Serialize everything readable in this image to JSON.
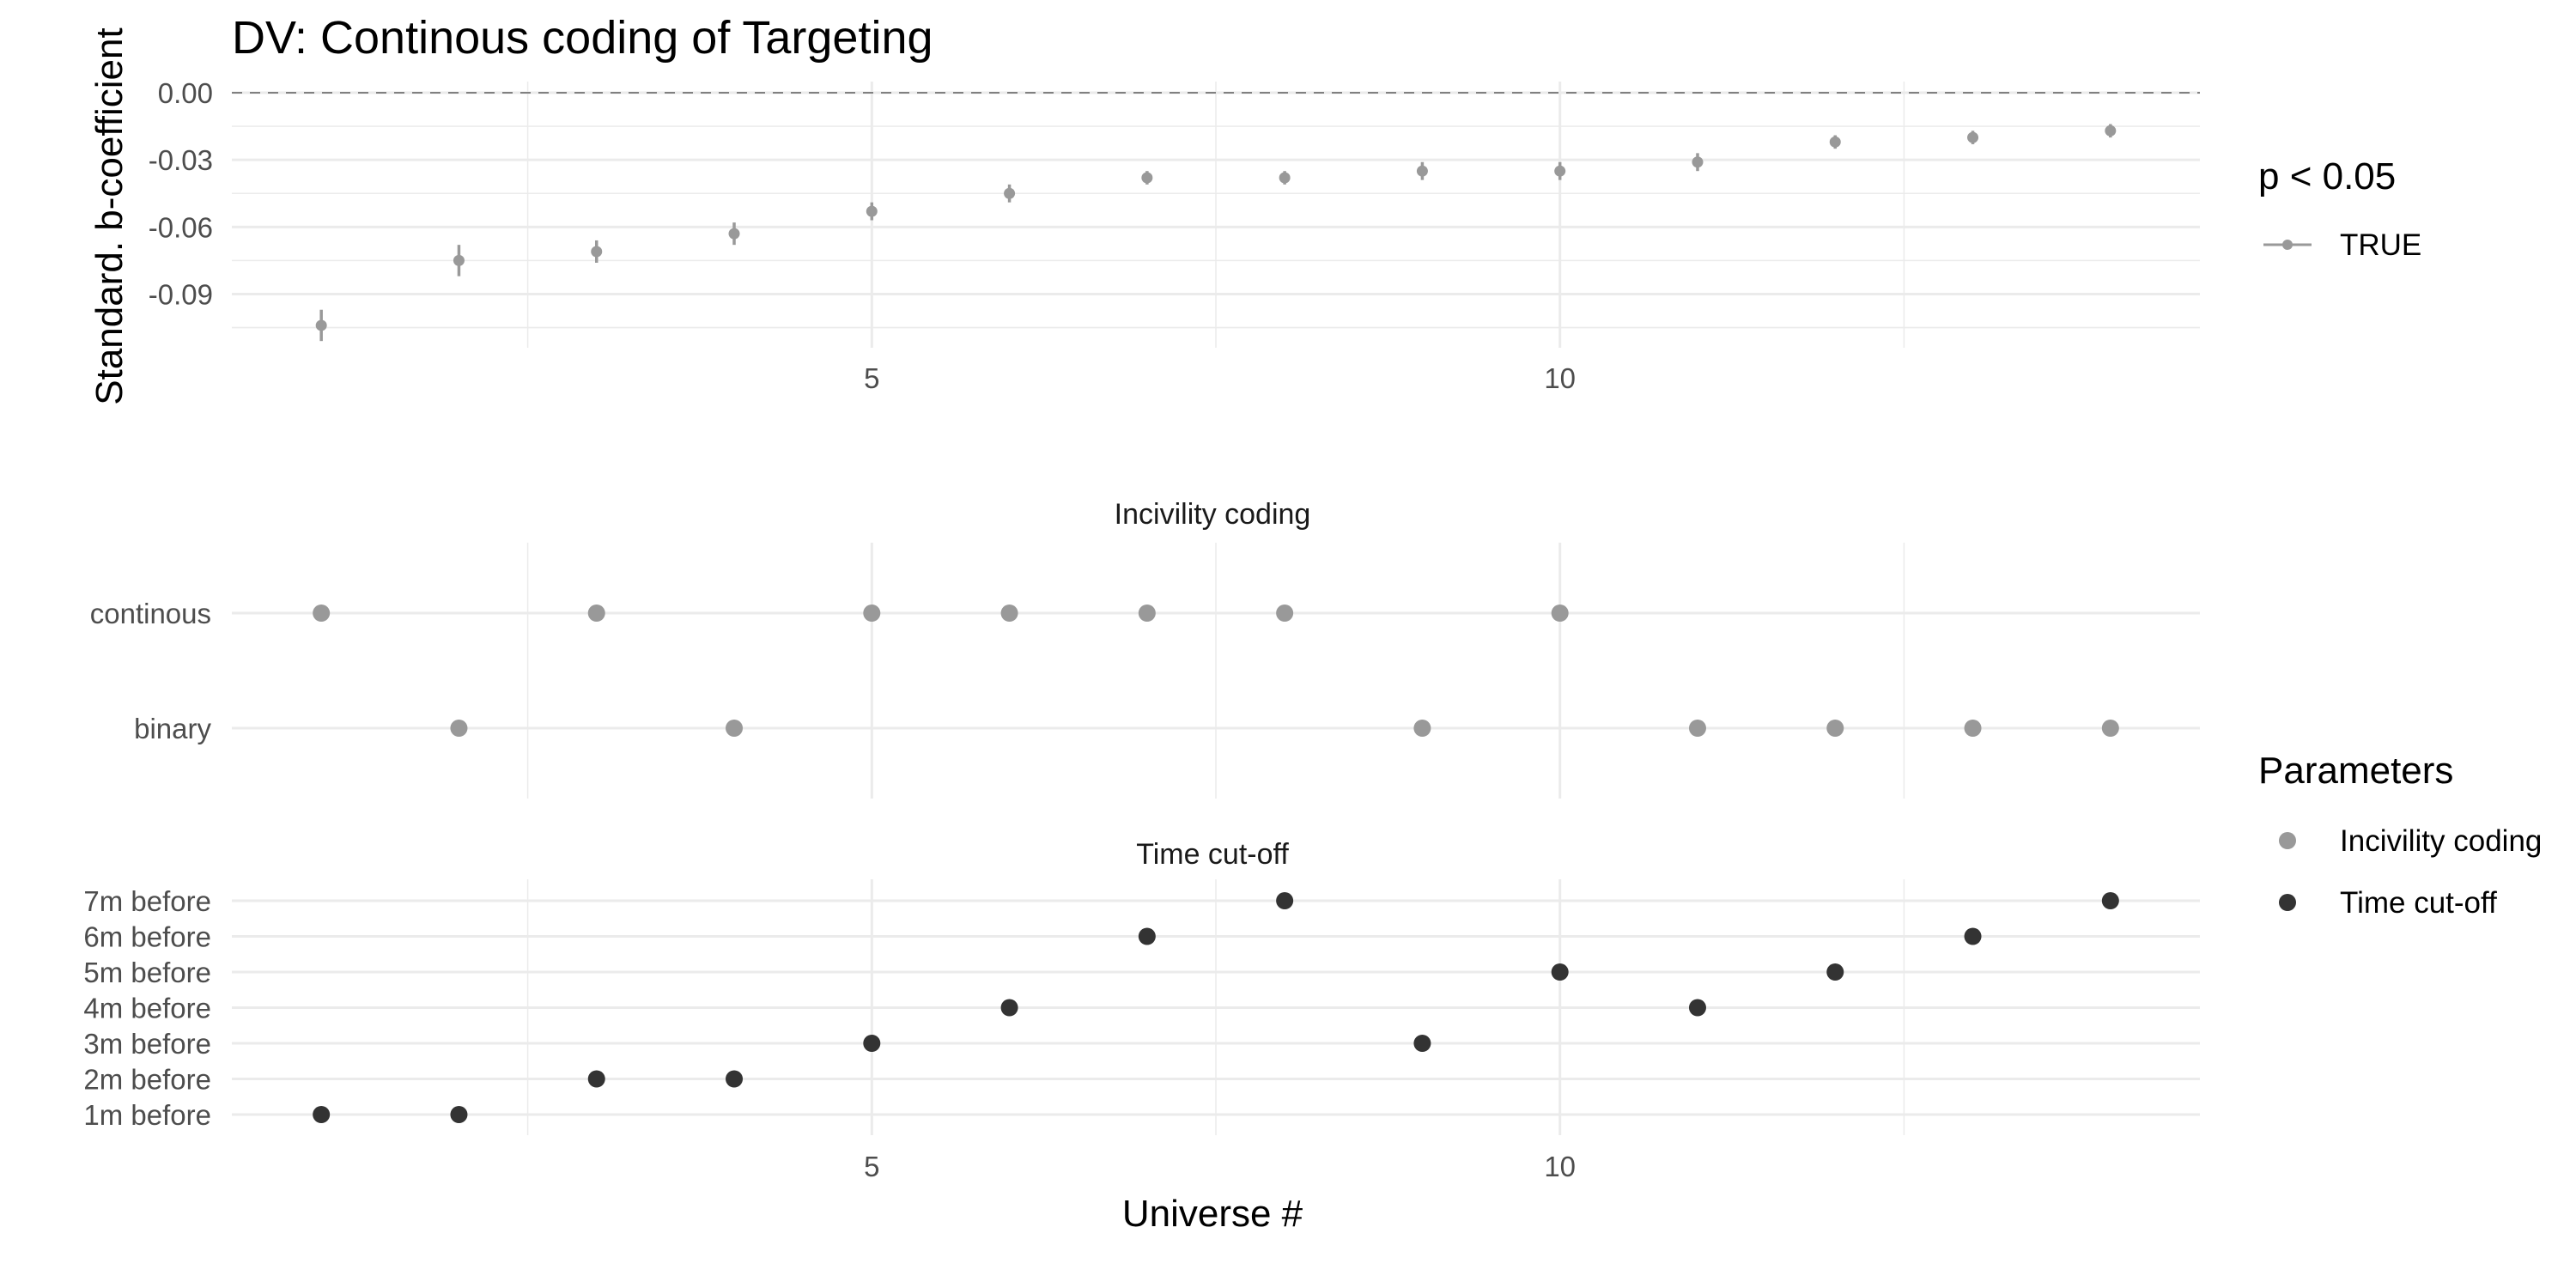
{
  "chart_data": [
    {
      "type": "scatter",
      "panel": "coefficient",
      "title": "DV: Continous coding of Targeting",
      "ylabel": "Standard. b-coefficient",
      "xlabel": "",
      "x": [
        1,
        2,
        3,
        4,
        5,
        6,
        7,
        8,
        9,
        10,
        11,
        12,
        13,
        14
      ],
      "y": [
        -0.104,
        -0.075,
        -0.071,
        -0.063,
        -0.053,
        -0.045,
        -0.038,
        -0.038,
        -0.035,
        -0.035,
        -0.031,
        -0.022,
        -0.02,
        -0.017
      ],
      "ci_low": [
        -0.111,
        -0.082,
        -0.076,
        -0.068,
        -0.057,
        -0.049,
        -0.041,
        -0.041,
        -0.039,
        -0.039,
        -0.035,
        -0.025,
        -0.023,
        -0.02
      ],
      "ci_high": [
        -0.097,
        -0.068,
        -0.066,
        -0.058,
        -0.049,
        -0.041,
        -0.035,
        -0.035,
        -0.031,
        -0.031,
        -0.027,
        -0.019,
        -0.017,
        -0.014
      ],
      "xlim": [
        0.35,
        14.65
      ],
      "ylim": [
        -0.114,
        0.005
      ],
      "xticks": [
        5,
        10
      ],
      "xtick_labels": [
        "5",
        "10"
      ],
      "yticks": [
        0,
        -0.03,
        -0.06,
        -0.09
      ],
      "ytick_labels": [
        "0.00",
        "-0.03",
        "-0.06",
        "-0.09"
      ],
      "reference_line": 0,
      "legend": {
        "title": "p < 0.05",
        "entries": [
          "TRUE"
        ],
        "position": "right"
      },
      "color": "#999999"
    },
    {
      "type": "scatter",
      "panel": "specification",
      "strip_label": "Incivility coding",
      "categories": [
        "binary",
        "continous"
      ],
      "x": [
        1,
        2,
        3,
        4,
        5,
        6,
        7,
        8,
        9,
        10,
        11,
        12,
        13,
        14
      ],
      "y": [
        "continous",
        "binary",
        "continous",
        "binary",
        "continous",
        "continous",
        "continous",
        "continous",
        "binary",
        "continous",
        "binary",
        "binary",
        "binary",
        "binary"
      ],
      "color": "#999999"
    },
    {
      "type": "scatter",
      "panel": "specification",
      "strip_label": "Time cut-off",
      "categories": [
        "1m before",
        "2m before",
        "3m before",
        "4m before",
        "5m before",
        "6m before",
        "7m before"
      ],
      "x": [
        1,
        2,
        3,
        4,
        5,
        6,
        7,
        8,
        9,
        10,
        11,
        12,
        13,
        14
      ],
      "y": [
        "1m before",
        "1m before",
        "2m before",
        "2m before",
        "3m before",
        "4m before",
        "6m before",
        "7m before",
        "3m before",
        "5m before",
        "4m before",
        "5m before",
        "6m before",
        "7m before"
      ],
      "xticks": [
        5,
        10
      ],
      "xtick_labels": [
        "5",
        "10"
      ],
      "xlabel": "Universe #",
      "legend": {
        "title": "Parameters",
        "entries": [
          "Incivility coding",
          "Time cut-off"
        ],
        "position": "right"
      },
      "color": "#333333"
    }
  ],
  "colors": {
    "coef": "#999999",
    "incivility": "#999999",
    "timecut": "#333333",
    "grid": "#ebebeb",
    "refline": "#808080"
  }
}
